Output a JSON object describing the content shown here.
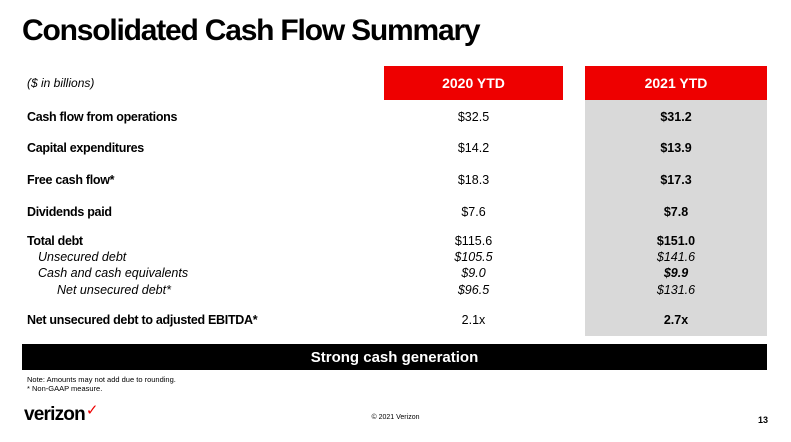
{
  "title": "Consolidated Cash Flow Summary",
  "table": {
    "units_label": "($ in billions)",
    "col_2020": "2020 YTD",
    "col_2021": "2021 YTD",
    "rows": [
      {
        "label": "Cash flow from operations",
        "v2020": "$32.5",
        "v2021": "$31.2"
      },
      {
        "label": "Capital expenditures",
        "v2020": "$14.2",
        "v2021": "$13.9"
      },
      {
        "label": "Free cash flow*",
        "v2020": "$18.3",
        "v2021": "$17.3"
      },
      {
        "label": "Dividends paid",
        "v2020": "$7.6",
        "v2021": "$7.8"
      },
      {
        "label": "Total debt",
        "v2020": "$115.6",
        "v2021": "$151.0"
      },
      {
        "label": "Unsecured debt",
        "v2020": "$105.5",
        "v2021": "$141.6"
      },
      {
        "label": "Cash and cash equivalents",
        "v2020": "$9.0",
        "v2021": "$9.9"
      },
      {
        "label": "Net unsecured debt*",
        "v2020": "$96.5",
        "v2021": "$131.6"
      },
      {
        "label": "Net unsecured debt to adjusted EBITDA*",
        "v2020": "2.1x",
        "v2021": "2.7x"
      }
    ]
  },
  "banner": "Strong cash generation",
  "notes": {
    "line1": "Note: Amounts may not add due to rounding.",
    "line2": "* Non-GAAP measure."
  },
  "footer": {
    "logo_text": "verizon",
    "logo_mark": "✓",
    "copyright": "© 2021 Verizon",
    "page_number": "13"
  },
  "colors": {
    "brand_red": "#ee0000",
    "highlight_gray": "#d9d9d9",
    "banner_black": "#000000"
  }
}
